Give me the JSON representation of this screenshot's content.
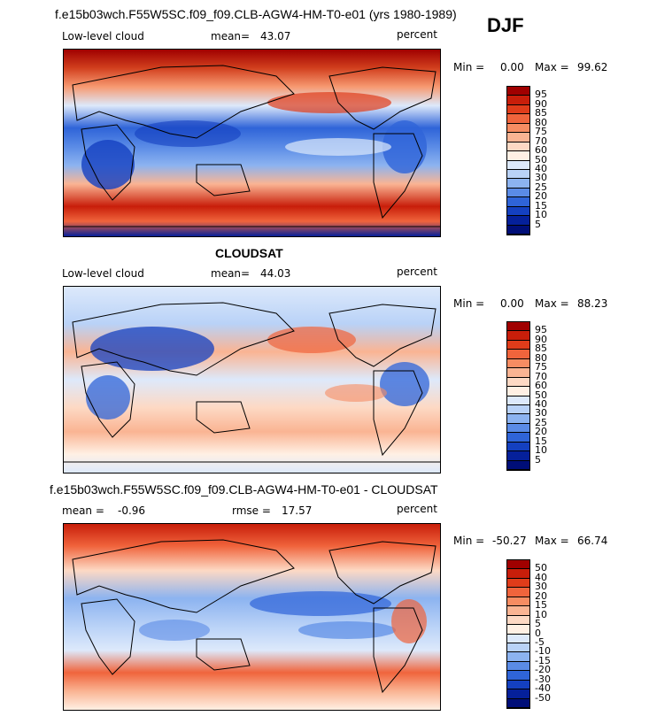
{
  "season": "DJF",
  "panels": [
    {
      "title": "f.e15b03wch.F55W5SC.f09_f09.CLB-AGW4-HM-T0-e01 (yrs 1980-1989)",
      "label_left": "Low-level cloud",
      "stat1_label": "mean=",
      "stat1_value": "43.07",
      "stat2_label": "",
      "stat2_value": "",
      "units": "percent",
      "min_label": "Min =",
      "min_value": "0.00",
      "max_label": "Max =",
      "max_value": "99.62"
    },
    {
      "title": "CLOUDSAT",
      "label_left": "Low-level cloud",
      "stat1_label": "mean=",
      "stat1_value": "44.03",
      "stat2_label": "",
      "stat2_value": "",
      "units": "percent",
      "min_label": "Min =",
      "min_value": "0.00",
      "max_label": "Max =",
      "max_value": "88.23"
    },
    {
      "title": "f.e15b03wch.F55W5SC.f09_f09.CLB-AGW4-HM-T0-e01 - CLOUDSAT",
      "label_left": "",
      "stat1_label": "mean =",
      "stat1_value": "-0.96",
      "stat2_label": "rmse =",
      "stat2_value": "17.57",
      "units": "percent",
      "min_label": "Min =",
      "min_value": "-50.27",
      "max_label": "Max =",
      "max_value": "66.74"
    }
  ],
  "colorbar_abs": {
    "levels": [
      "95",
      "90",
      "85",
      "80",
      "75",
      "70",
      "60",
      "50",
      "40",
      "30",
      "25",
      "20",
      "15",
      "10",
      "5"
    ],
    "colors": [
      "#a00000",
      "#c81e0a",
      "#e03c1a",
      "#f0643c",
      "#f78c62",
      "#fab493",
      "#fdd9c4",
      "#fff0e4",
      "#dde9fb",
      "#b9d2f7",
      "#8cb3f0",
      "#5a8be6",
      "#2f64d8",
      "#1440c0",
      "#05209a",
      "#000e78"
    ]
  },
  "colorbar_diff": {
    "levels": [
      "50",
      "40",
      "30",
      "20",
      "15",
      "10",
      "5",
      "0",
      "-5",
      "-10",
      "-15",
      "-20",
      "-30",
      "-40",
      "-50"
    ],
    "colors": [
      "#a00000",
      "#c81e0a",
      "#e03c1a",
      "#f0643c",
      "#f78c62",
      "#fab493",
      "#fdd9c4",
      "#fff0e4",
      "#dde9fb",
      "#b9d2f7",
      "#8cb3f0",
      "#5a8be6",
      "#2f64d8",
      "#1440c0",
      "#05209a",
      "#000e78"
    ]
  },
  "chart_data": [
    {
      "type": "heatmap",
      "title": "f.e15b03wch.F55W5SC.f09_f09.CLB-AGW4-HM-T0-e01 (yrs 1980-1989)",
      "field": "Low-level cloud",
      "units": "percent",
      "mean": 43.07,
      "min": 0.0,
      "max": 99.62,
      "contour_levels": [
        5,
        10,
        15,
        20,
        25,
        30,
        40,
        50,
        60,
        70,
        75,
        80,
        85,
        90,
        95
      ]
    },
    {
      "type": "heatmap",
      "title": "CLOUDSAT",
      "field": "Low-level cloud",
      "units": "percent",
      "mean": 44.03,
      "min": 0.0,
      "max": 88.23,
      "contour_levels": [
        5,
        10,
        15,
        20,
        25,
        30,
        40,
        50,
        60,
        70,
        75,
        80,
        85,
        90,
        95
      ]
    },
    {
      "type": "heatmap",
      "title": "f.e15b03wch.F55W5SC.f09_f09.CLB-AGW4-HM-T0-e01 - CLOUDSAT",
      "units": "percent",
      "mean": -0.96,
      "rmse": 17.57,
      "min": -50.27,
      "max": 66.74,
      "contour_levels": [
        -50,
        -40,
        -30,
        -20,
        -15,
        -10,
        -5,
        0,
        5,
        10,
        15,
        20,
        30,
        40,
        50
      ]
    }
  ]
}
